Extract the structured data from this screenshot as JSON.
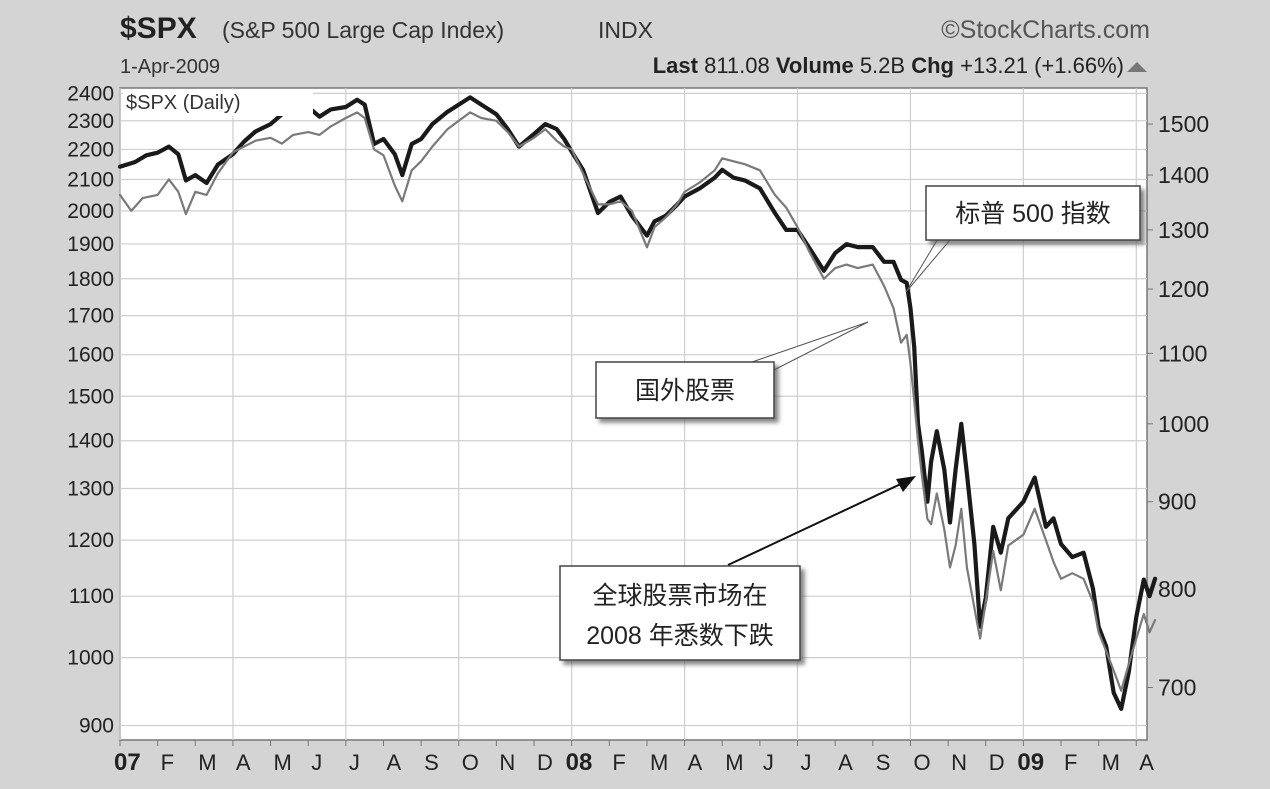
{
  "header": {
    "symbol": "$SPX",
    "name": "(S&P 500 Large Cap Index)",
    "exchange": "INDX",
    "watermark": "©StockCharts.com",
    "date": "1-Apr-2009",
    "last_label": "Last",
    "last_value": "811.08",
    "volume_label": "Volume",
    "volume_value": "5.2B",
    "chg_label": "Chg",
    "chg_value": "+13.21 (+1.66%)"
  },
  "colors": {
    "background": "#d4d4d4",
    "plot_background": "#ffffff",
    "grid": "#cfcfcf",
    "spx_line": "#1a1a1a",
    "foreign_line": "#7a7a7a"
  },
  "chart_data": {
    "type": "line",
    "title": "$SPX (Daily)",
    "x_ticks": [
      "07",
      "F",
      "M",
      "A",
      "M",
      "J",
      "J",
      "A",
      "S",
      "O",
      "N",
      "D",
      "08",
      "F",
      "M",
      "A",
      "M",
      "J",
      "J",
      "A",
      "S",
      "O",
      "N",
      "D",
      "09",
      "F",
      "M",
      "A"
    ],
    "left_axis": {
      "ticks": [
        900,
        1000,
        1100,
        1200,
        1300,
        1400,
        1500,
        1600,
        1700,
        1800,
        1900,
        2000,
        2100,
        2200,
        2300,
        2400
      ],
      "scale": "log",
      "range": [
        880,
        2420
      ]
    },
    "right_axis": {
      "ticks": [
        700,
        800,
        900,
        1000,
        1100,
        1200,
        1300,
        1400,
        1500
      ],
      "scale": "log",
      "range": [
        652,
        1575
      ]
    },
    "grid": true,
    "series": [
      {
        "axis": "right",
        "points": [
          [
            0.0,
            1416
          ],
          [
            0.4,
            1425
          ],
          [
            0.7,
            1438
          ],
          [
            1.0,
            1443
          ],
          [
            1.3,
            1455
          ],
          [
            1.55,
            1440
          ],
          [
            1.75,
            1390
          ],
          [
            2.0,
            1400
          ],
          [
            2.3,
            1385
          ],
          [
            2.6,
            1420
          ],
          [
            3.0,
            1440
          ],
          [
            3.3,
            1465
          ],
          [
            3.6,
            1485
          ],
          [
            4.0,
            1500
          ],
          [
            4.3,
            1520
          ],
          [
            4.6,
            1530
          ],
          [
            5.0,
            1535
          ],
          [
            5.3,
            1515
          ],
          [
            5.6,
            1530
          ],
          [
            6.0,
            1535
          ],
          [
            6.3,
            1550
          ],
          [
            6.5,
            1540
          ],
          [
            6.75,
            1460
          ],
          [
            7.0,
            1470
          ],
          [
            7.3,
            1440
          ],
          [
            7.5,
            1400
          ],
          [
            7.75,
            1460
          ],
          [
            8.0,
            1470
          ],
          [
            8.3,
            1500
          ],
          [
            8.7,
            1525
          ],
          [
            9.0,
            1540
          ],
          [
            9.3,
            1555
          ],
          [
            9.6,
            1540
          ],
          [
            10.0,
            1520
          ],
          [
            10.3,
            1490
          ],
          [
            10.6,
            1455
          ],
          [
            11.0,
            1480
          ],
          [
            11.3,
            1500
          ],
          [
            11.6,
            1490
          ],
          [
            11.8,
            1470
          ],
          [
            12.0,
            1445
          ],
          [
            12.3,
            1410
          ],
          [
            12.7,
            1330
          ],
          [
            13.0,
            1350
          ],
          [
            13.3,
            1360
          ],
          [
            13.6,
            1325
          ],
          [
            14.0,
            1290
          ],
          [
            14.2,
            1315
          ],
          [
            14.5,
            1325
          ],
          [
            14.8,
            1345
          ],
          [
            15.0,
            1360
          ],
          [
            15.4,
            1375
          ],
          [
            15.8,
            1395
          ],
          [
            16.0,
            1410
          ],
          [
            16.3,
            1395
          ],
          [
            16.6,
            1390
          ],
          [
            17.0,
            1375
          ],
          [
            17.4,
            1330
          ],
          [
            17.7,
            1300
          ],
          [
            18.0,
            1300
          ],
          [
            18.3,
            1270
          ],
          [
            18.7,
            1230
          ],
          [
            19.0,
            1260
          ],
          [
            19.3,
            1275
          ],
          [
            19.6,
            1270
          ],
          [
            20.0,
            1270
          ],
          [
            20.3,
            1245
          ],
          [
            20.55,
            1245
          ],
          [
            20.75,
            1215
          ],
          [
            20.9,
            1210
          ],
          [
            21.0,
            1170
          ],
          [
            21.1,
            1110
          ],
          [
            21.2,
            1000
          ],
          [
            21.3,
            965
          ],
          [
            21.45,
            900
          ],
          [
            21.55,
            950
          ],
          [
            21.7,
            990
          ],
          [
            21.9,
            940
          ],
          [
            22.05,
            875
          ],
          [
            22.2,
            940
          ],
          [
            22.35,
            1000
          ],
          [
            22.5,
            935
          ],
          [
            22.7,
            850
          ],
          [
            22.85,
            760
          ],
          [
            23.0,
            790
          ],
          [
            23.2,
            870
          ],
          [
            23.4,
            840
          ],
          [
            23.6,
            880
          ],
          [
            24.0,
            900
          ],
          [
            24.3,
            930
          ],
          [
            24.6,
            870
          ],
          [
            24.8,
            880
          ],
          [
            25.0,
            850
          ],
          [
            25.3,
            835
          ],
          [
            25.6,
            840
          ],
          [
            25.85,
            800
          ],
          [
            26.0,
            760
          ],
          [
            26.2,
            740
          ],
          [
            26.4,
            695
          ],
          [
            26.6,
            680
          ],
          [
            26.8,
            715
          ],
          [
            27.0,
            770
          ],
          [
            27.2,
            810
          ],
          [
            27.35,
            792
          ],
          [
            27.5,
            811
          ]
        ]
      },
      {
        "axis": "left",
        "points": [
          [
            0.0,
            2050
          ],
          [
            0.3,
            2000
          ],
          [
            0.6,
            2040
          ],
          [
            1.0,
            2050
          ],
          [
            1.3,
            2100
          ],
          [
            1.55,
            2060
          ],
          [
            1.75,
            1990
          ],
          [
            2.0,
            2060
          ],
          [
            2.3,
            2050
          ],
          [
            2.6,
            2120
          ],
          [
            3.0,
            2190
          ],
          [
            3.3,
            2210
          ],
          [
            3.6,
            2230
          ],
          [
            4.0,
            2240
          ],
          [
            4.3,
            2220
          ],
          [
            4.6,
            2250
          ],
          [
            5.0,
            2260
          ],
          [
            5.3,
            2250
          ],
          [
            5.6,
            2280
          ],
          [
            6.0,
            2310
          ],
          [
            6.3,
            2330
          ],
          [
            6.5,
            2310
          ],
          [
            6.75,
            2200
          ],
          [
            7.0,
            2180
          ],
          [
            7.3,
            2080
          ],
          [
            7.5,
            2030
          ],
          [
            7.75,
            2130
          ],
          [
            8.0,
            2160
          ],
          [
            8.3,
            2210
          ],
          [
            8.7,
            2270
          ],
          [
            9.0,
            2300
          ],
          [
            9.3,
            2330
          ],
          [
            9.6,
            2310
          ],
          [
            10.0,
            2300
          ],
          [
            10.3,
            2260
          ],
          [
            10.6,
            2210
          ],
          [
            11.0,
            2240
          ],
          [
            11.3,
            2270
          ],
          [
            11.6,
            2230
          ],
          [
            11.8,
            2210
          ],
          [
            12.0,
            2200
          ],
          [
            12.3,
            2120
          ],
          [
            12.7,
            2020
          ],
          [
            13.0,
            2020
          ],
          [
            13.3,
            2030
          ],
          [
            13.6,
            2000
          ],
          [
            14.0,
            1890
          ],
          [
            14.2,
            1950
          ],
          [
            14.5,
            1980
          ],
          [
            14.8,
            2020
          ],
          [
            15.0,
            2060
          ],
          [
            15.4,
            2090
          ],
          [
            15.8,
            2130
          ],
          [
            16.0,
            2170
          ],
          [
            16.3,
            2160
          ],
          [
            16.6,
            2150
          ],
          [
            17.0,
            2130
          ],
          [
            17.4,
            2050
          ],
          [
            17.7,
            2010
          ],
          [
            18.0,
            1950
          ],
          [
            18.3,
            1880
          ],
          [
            18.7,
            1800
          ],
          [
            19.0,
            1830
          ],
          [
            19.3,
            1840
          ],
          [
            19.6,
            1830
          ],
          [
            20.0,
            1840
          ],
          [
            20.3,
            1780
          ],
          [
            20.55,
            1720
          ],
          [
            20.75,
            1630
          ],
          [
            20.9,
            1650
          ],
          [
            21.0,
            1580
          ],
          [
            21.1,
            1490
          ],
          [
            21.2,
            1400
          ],
          [
            21.3,
            1330
          ],
          [
            21.45,
            1240
          ],
          [
            21.55,
            1230
          ],
          [
            21.7,
            1290
          ],
          [
            21.9,
            1220
          ],
          [
            22.05,
            1150
          ],
          [
            22.2,
            1190
          ],
          [
            22.35,
            1260
          ],
          [
            22.5,
            1150
          ],
          [
            22.7,
            1080
          ],
          [
            22.85,
            1030
          ],
          [
            23.0,
            1090
          ],
          [
            23.2,
            1180
          ],
          [
            23.4,
            1110
          ],
          [
            23.6,
            1190
          ],
          [
            24.0,
            1210
          ],
          [
            24.3,
            1260
          ],
          [
            24.6,
            1200
          ],
          [
            24.8,
            1160
          ],
          [
            25.0,
            1130
          ],
          [
            25.3,
            1140
          ],
          [
            25.6,
            1130
          ],
          [
            25.85,
            1090
          ],
          [
            26.0,
            1040
          ],
          [
            26.2,
            1010
          ],
          [
            26.4,
            980
          ],
          [
            26.6,
            950
          ],
          [
            26.8,
            990
          ],
          [
            27.0,
            1030
          ],
          [
            27.2,
            1070
          ],
          [
            27.35,
            1040
          ],
          [
            27.5,
            1060
          ]
        ]
      }
    ],
    "annotations": [
      {
        "text": "标普 500 指数"
      },
      {
        "text": "国外股票"
      },
      {
        "lines": [
          "全球股票市场在",
          "2008 年悉数下跌"
        ]
      }
    ]
  }
}
